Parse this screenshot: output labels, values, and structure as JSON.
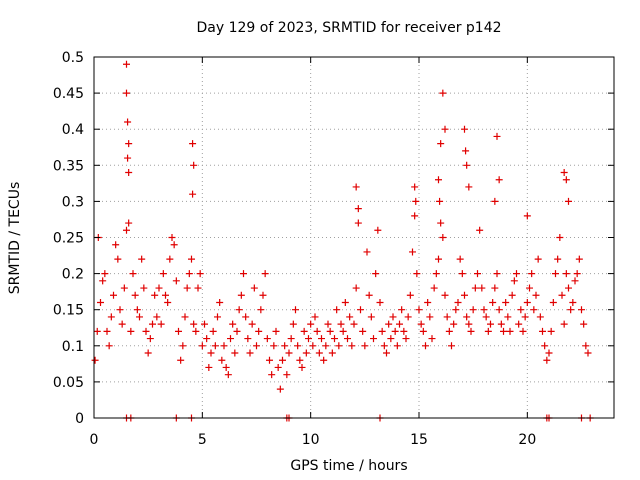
{
  "chart_data": {
    "type": "scatter",
    "title": "Day 129 of 2023, SRMTID for receiver p142",
    "xlabel": "GPS time / hours",
    "ylabel": "SRMTID / TECUs",
    "xlim": [
      0,
      24
    ],
    "ylim": [
      0,
      0.5
    ],
    "x_ticks": [
      0,
      5,
      10,
      15,
      20
    ],
    "y_ticks": [
      0,
      0.05,
      0.1,
      0.15,
      0.2,
      0.25,
      0.3,
      0.35,
      0.4,
      0.45,
      0.5
    ],
    "y_tick_labels": [
      "0",
      "0.05",
      "0.1",
      "0.15",
      "0.2",
      "0.25",
      "0.3",
      "0.35",
      "0.4",
      "0.45",
      "0.5"
    ],
    "grid": true,
    "marker": "+",
    "color": "#e00000",
    "series": [
      {
        "name": "SRMTID",
        "x": [
          0.05,
          0.15,
          0.2,
          0.3,
          0.4,
          0.5,
          0.6,
          0.7,
          0.8,
          0.9,
          1.0,
          1.1,
          1.2,
          1.3,
          1.4,
          1.5,
          1.55,
          1.6,
          1.7,
          1.8,
          1.9,
          2.0,
          2.1,
          2.2,
          2.3,
          2.4,
          2.5,
          2.6,
          2.7,
          2.8,
          2.9,
          3.0,
          3.1,
          3.2,
          3.3,
          3.4,
          3.5,
          3.6,
          3.7,
          3.8,
          3.9,
          4.0,
          4.1,
          4.2,
          4.3,
          4.4,
          4.5,
          4.6,
          4.7,
          4.8,
          4.9,
          5.0,
          5.1,
          5.2,
          5.3,
          5.4,
          5.5,
          5.6,
          5.7,
          5.8,
          5.9,
          6.0,
          6.1,
          6.2,
          6.3,
          6.4,
          6.5,
          6.6,
          6.7,
          6.8,
          6.9,
          7.0,
          7.1,
          7.2,
          7.3,
          7.4,
          7.5,
          7.6,
          7.7,
          7.8,
          7.9,
          8.0,
          8.1,
          8.2,
          8.3,
          8.4,
          8.5,
          8.6,
          8.7,
          8.8,
          8.9,
          9.0,
          9.1,
          9.2,
          9.3,
          9.4,
          9.5,
          9.6,
          9.7,
          9.8,
          9.9,
          10.0,
          10.1,
          10.2,
          10.3,
          10.4,
          10.5,
          10.6,
          10.7,
          10.8,
          10.9,
          11.0,
          11.1,
          11.2,
          11.3,
          11.4,
          11.5,
          11.6,
          11.7,
          11.8,
          11.9,
          12.0,
          12.1,
          12.2,
          12.3,
          12.4,
          12.5,
          12.6,
          12.7,
          12.8,
          12.9,
          13.0,
          13.1,
          13.2,
          13.3,
          13.4,
          13.5,
          13.6,
          13.7,
          13.8,
          13.9,
          14.0,
          14.1,
          14.2,
          14.3,
          14.4,
          14.5,
          14.6,
          14.7,
          14.8,
          14.9,
          15.0,
          15.1,
          15.2,
          15.3,
          15.4,
          15.5,
          15.6,
          15.7,
          15.8,
          15.9,
          16.0,
          16.1,
          16.2,
          16.3,
          16.4,
          16.5,
          16.6,
          16.7,
          16.8,
          16.9,
          17.0,
          17.1,
          17.2,
          17.3,
          17.4,
          17.5,
          17.6,
          17.7,
          17.8,
          17.9,
          18.0,
          18.1,
          18.2,
          18.3,
          18.4,
          18.5,
          18.6,
          18.7,
          18.8,
          18.9,
          19.0,
          19.1,
          19.2,
          19.3,
          19.4,
          19.5,
          19.6,
          19.7,
          19.8,
          19.9,
          20.0,
          20.1,
          20.2,
          20.3,
          20.4,
          20.5,
          20.6,
          20.7,
          20.8,
          20.9,
          21.0,
          21.1,
          21.2,
          21.3,
          21.4,
          21.5,
          21.6,
          21.7,
          21.8,
          21.9,
          22.0,
          22.1,
          22.2,
          22.3,
          22.4,
          22.5,
          22.6,
          22.7,
          22.8,
          1.5,
          1.5,
          1.55,
          1.6,
          1.6,
          4.55,
          4.6,
          4.55,
          12.1,
          12.2,
          14.8,
          14.85,
          15.9,
          15.95,
          16.0,
          16.1,
          16.2,
          17.1,
          17.15,
          17.2,
          17.3,
          18.6,
          18.7,
          18.5,
          20.0,
          21.7,
          21.8,
          21.9,
          1.5,
          1.7,
          3.8,
          4.5,
          8.9,
          9.0,
          13.2,
          20.9,
          21.0,
          22.5,
          22.9
        ],
        "y": [
          0.08,
          0.12,
          0.25,
          0.16,
          0.19,
          0.2,
          0.12,
          0.1,
          0.14,
          0.17,
          0.24,
          0.22,
          0.15,
          0.13,
          0.18,
          0.26,
          0.36,
          0.27,
          0.12,
          0.2,
          0.17,
          0.15,
          0.14,
          0.22,
          0.18,
          0.12,
          0.09,
          0.11,
          0.13,
          0.17,
          0.14,
          0.18,
          0.13,
          0.2,
          0.17,
          0.16,
          0.22,
          0.25,
          0.24,
          0.19,
          0.12,
          0.08,
          0.1,
          0.14,
          0.18,
          0.2,
          0.22,
          0.13,
          0.12,
          0.18,
          0.2,
          0.1,
          0.13,
          0.11,
          0.07,
          0.09,
          0.12,
          0.1,
          0.14,
          0.16,
          0.08,
          0.1,
          0.07,
          0.06,
          0.11,
          0.13,
          0.09,
          0.12,
          0.15,
          0.17,
          0.2,
          0.14,
          0.11,
          0.09,
          0.13,
          0.18,
          0.1,
          0.12,
          0.15,
          0.17,
          0.2,
          0.11,
          0.08,
          0.06,
          0.1,
          0.12,
          0.07,
          0.04,
          0.08,
          0.1,
          0.06,
          0.09,
          0.11,
          0.13,
          0.15,
          0.1,
          0.08,
          0.07,
          0.12,
          0.09,
          0.11,
          0.13,
          0.1,
          0.14,
          0.12,
          0.09,
          0.11,
          0.08,
          0.1,
          0.13,
          0.12,
          0.09,
          0.11,
          0.15,
          0.1,
          0.13,
          0.12,
          0.16,
          0.11,
          0.14,
          0.1,
          0.13,
          0.18,
          0.27,
          0.15,
          0.12,
          0.1,
          0.23,
          0.17,
          0.14,
          0.11,
          0.2,
          0.26,
          0.16,
          0.12,
          0.1,
          0.09,
          0.13,
          0.11,
          0.14,
          0.12,
          0.1,
          0.13,
          0.15,
          0.12,
          0.11,
          0.14,
          0.17,
          0.23,
          0.28,
          0.2,
          0.15,
          0.13,
          0.12,
          0.1,
          0.16,
          0.14,
          0.11,
          0.18,
          0.2,
          0.22,
          0.27,
          0.25,
          0.17,
          0.14,
          0.12,
          0.1,
          0.13,
          0.15,
          0.16,
          0.22,
          0.2,
          0.17,
          0.14,
          0.13,
          0.12,
          0.15,
          0.18,
          0.2,
          0.26,
          0.18,
          0.15,
          0.14,
          0.12,
          0.13,
          0.16,
          0.18,
          0.2,
          0.15,
          0.13,
          0.12,
          0.16,
          0.14,
          0.12,
          0.17,
          0.19,
          0.2,
          0.13,
          0.15,
          0.12,
          0.14,
          0.16,
          0.18,
          0.2,
          0.15,
          0.17,
          0.22,
          0.14,
          0.12,
          0.1,
          0.08,
          0.09,
          0.12,
          0.16,
          0.2,
          0.22,
          0.25,
          0.17,
          0.13,
          0.2,
          0.18,
          0.15,
          0.16,
          0.19,
          0.2,
          0.22,
          0.15,
          0.13,
          0.1,
          0.09,
          0.49,
          0.45,
          0.41,
          0.38,
          0.34,
          0.38,
          0.35,
          0.31,
          0.32,
          0.29,
          0.32,
          0.3,
          0.33,
          0.3,
          0.38,
          0.45,
          0.4,
          0.4,
          0.37,
          0.35,
          0.32,
          0.39,
          0.33,
          0.3,
          0.28,
          0.34,
          0.33,
          0.3,
          0.0,
          0.0,
          0.0,
          0.0,
          0.0,
          0.0,
          0.0,
          0.0,
          0.0,
          0.0,
          0.0
        ]
      }
    ]
  }
}
